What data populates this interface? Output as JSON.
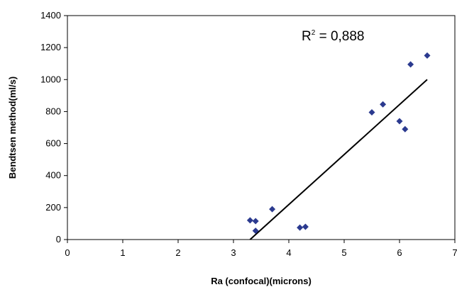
{
  "chart_data": {
    "type": "scatter",
    "title": "",
    "xlabel": "Ra (confocal)(microns)",
    "ylabel": "Bendtsen method(ml/s)",
    "xlim": [
      0,
      7
    ],
    "ylim": [
      0,
      1400
    ],
    "x_ticks": [
      0,
      1,
      2,
      3,
      4,
      5,
      6,
      7
    ],
    "y_ticks": [
      0,
      200,
      400,
      600,
      800,
      1000,
      1200,
      1400
    ],
    "grid": false,
    "legend": "none",
    "series": [
      {
        "marker": "diamond",
        "color": "#2b3a8f",
        "points": [
          {
            "x": 3.3,
            "y": 120
          },
          {
            "x": 3.4,
            "y": 115
          },
          {
            "x": 3.4,
            "y": 55
          },
          {
            "x": 3.7,
            "y": 190
          },
          {
            "x": 4.2,
            "y": 75
          },
          {
            "x": 4.3,
            "y": 80
          },
          {
            "x": 5.5,
            "y": 795
          },
          {
            "x": 5.7,
            "y": 845
          },
          {
            "x": 6.0,
            "y": 740
          },
          {
            "x": 6.1,
            "y": 690
          },
          {
            "x": 6.2,
            "y": 1095
          },
          {
            "x": 6.5,
            "y": 1150
          }
        ]
      }
    ],
    "trendline": {
      "type": "linear",
      "color": "#000000",
      "from": {
        "x": 3.3,
        "y": 0
      },
      "to": {
        "x": 6.5,
        "y": 1000
      }
    },
    "annotation": {
      "base": "R",
      "sup": "2",
      "rest": " = 0,888"
    }
  }
}
